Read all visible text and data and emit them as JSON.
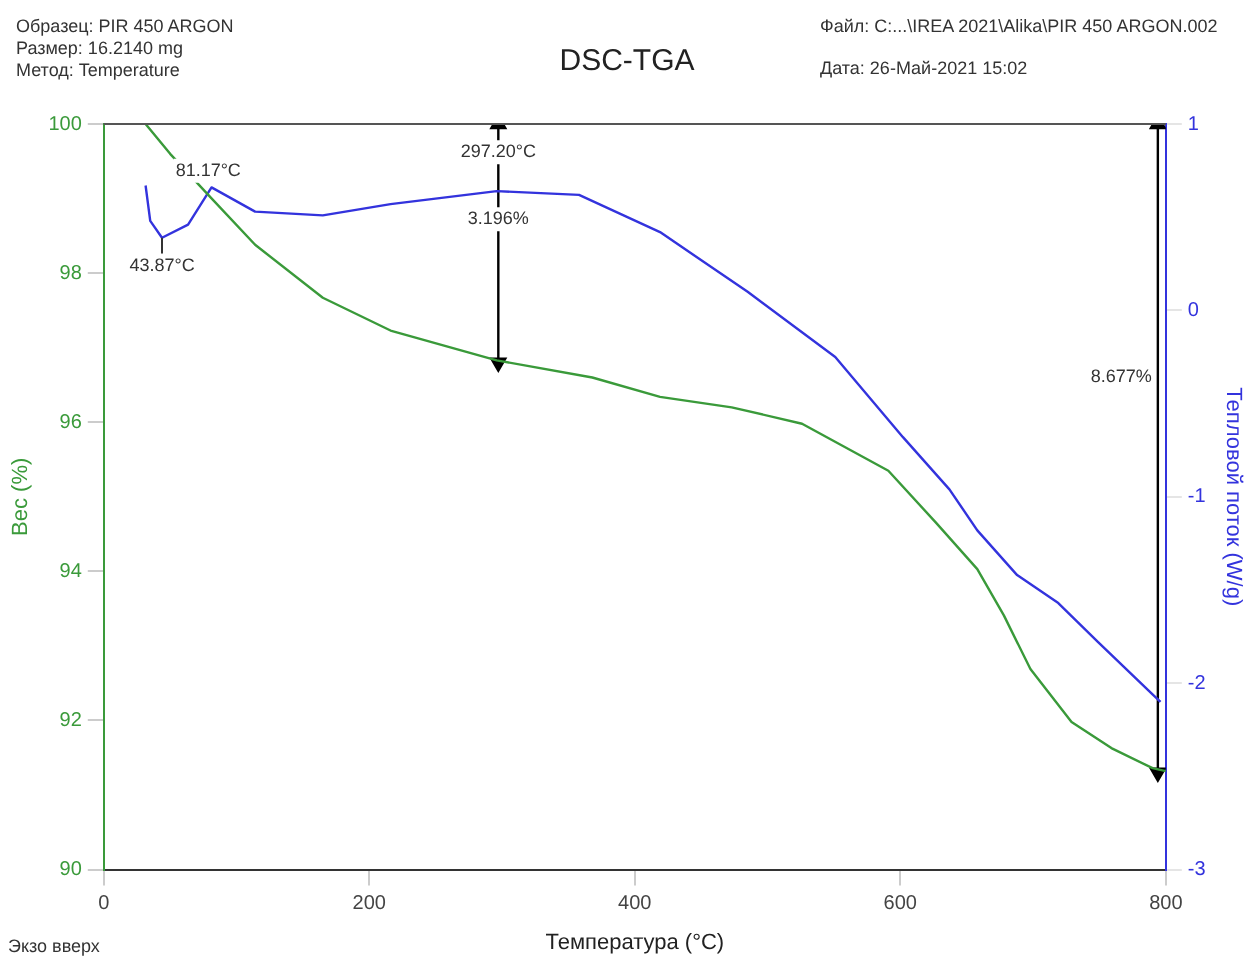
{
  "chart_data": {
    "type": "line",
    "title": "DSC-TGA",
    "xlabel": "Температура (°C)",
    "ylabel": "Вес (%)",
    "y2label": "Тепловой поток (W/g)",
    "xlim": [
      0,
      800
    ],
    "xticks": [
      0,
      200,
      400,
      600,
      800
    ],
    "ylim": [
      90,
      100
    ],
    "yticks": [
      90,
      92,
      94,
      96,
      98,
      100
    ],
    "y2lim": [
      -3,
      1
    ],
    "y2ticks": [
      -3,
      -2,
      -1,
      0,
      1
    ],
    "grid": false,
    "legend": false,
    "marker": "none",
    "line_style": "solid",
    "series": [
      {
        "color": "#3a9a3a",
        "x": [
          31.5,
          50,
          78.7,
          114,
          165,
          216,
          296,
          368,
          419,
          473,
          526,
          591,
          627,
          658,
          678,
          698,
          729,
          759,
          790,
          800
        ],
        "values": [
          100,
          99.6,
          99.05,
          98.38,
          97.67,
          97.23,
          96.83,
          96.6,
          96.34,
          96.2,
          95.98,
          95.35,
          94.65,
          94.03,
          93.41,
          92.69,
          91.98,
          91.63,
          91.36,
          91.32
        ]
      },
      {
        "color": "#3333dd",
        "axis": "y2",
        "x": [
          31.5,
          35,
          43.87,
          63.5,
          81.17,
          114,
          165,
          216,
          296,
          358,
          419,
          485,
          551,
          602,
          637,
          658,
          688,
          719,
          749,
          790,
          796
        ],
        "values": [
          0.67,
          0.48,
          0.39,
          0.46,
          0.66,
          0.53,
          0.51,
          0.57,
          0.64,
          0.62,
          0.42,
          0.1,
          -0.25,
          -0.68,
          -0.96,
          -1.18,
          -1.42,
          -1.57,
          -1.78,
          -2.06,
          -2.1
        ]
      },
      {
        "color": "#000000",
        "marker": "triangle",
        "x": [
          297.2,
          297.2
        ],
        "values": [
          100,
          96.8
        ]
      },
      {
        "color": "#000000",
        "marker": "triangle",
        "x": [
          794,
          794
        ],
        "values": [
          100,
          91.3
        ]
      }
    ],
    "annotations": [
      "Образец: PIR 450 ARGON",
      "Размер: 16.2140 mg",
      "Метод: Temperature",
      "Файл: C:...\\IREA 2021\\Alika\\PIR 450 ARGON.002",
      "Дата: 26-Май-2021 15:02",
      "Экзо вверх",
      "43.87°C",
      {
        "text": "81.17°C",
        "x": 78.7,
        "y": 99.05
      },
      {
        "text": "297.20°C",
        "x": 297.2,
        "y": 99.3
      },
      {
        "text": "3.196%",
        "x": 297.2,
        "y": 98.4
      },
      {
        "text": "8.677%",
        "x": 794,
        "y": 96.6
      }
    ]
  }
}
